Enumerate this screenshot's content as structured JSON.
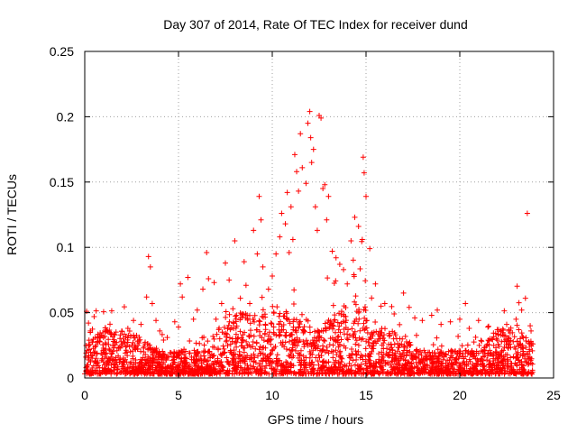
{
  "chart_data": {
    "type": "scatter",
    "title": "Day 307 of 2014, Rate Of TEC Index for receiver dund",
    "xlabel": "GPS time / hours",
    "ylabel": "ROTI / TECUs",
    "xlim": [
      0,
      25
    ],
    "ylim": [
      0,
      0.25
    ],
    "xticks": [
      0,
      5,
      10,
      15,
      20,
      25
    ],
    "xtick_labels": [
      "0",
      "5",
      "10",
      "15",
      "20",
      "25"
    ],
    "yticks": [
      0,
      0.05,
      0.1,
      0.15,
      0.2,
      0.25
    ],
    "ytick_labels": [
      "0",
      "0.05",
      "0.1",
      "0.15",
      "0.2",
      "0.25"
    ],
    "grid": true,
    "marker": "+",
    "color": "#ff0000",
    "series": [
      {
        "name": "ROTI",
        "x": [
          0.1,
          0.2,
          0.3,
          0.5,
          0.8,
          1.0,
          1.3,
          1.6,
          2.0,
          2.3,
          2.6,
          3.0,
          3.3,
          3.4,
          3.5,
          3.6,
          3.8,
          4.0,
          4.2,
          4.4,
          4.8,
          5.0,
          5.1,
          5.2,
          5.5,
          5.8,
          6.0,
          6.3,
          6.5,
          6.6,
          6.9,
          7.0,
          7.3,
          7.5,
          7.7,
          7.9,
          8.0,
          8.3,
          8.5,
          8.6,
          8.8,
          9.0,
          9.2,
          9.3,
          9.4,
          9.5,
          9.8,
          10.0,
          10.2,
          10.4,
          10.5,
          10.7,
          10.8,
          10.9,
          11.0,
          11.1,
          11.2,
          11.3,
          11.4,
          11.5,
          11.6,
          11.8,
          11.9,
          12.0,
          12.05,
          12.1,
          12.2,
          12.3,
          12.4,
          12.5,
          12.6,
          12.7,
          12.8,
          12.9,
          13.0,
          13.2,
          13.4,
          13.6,
          13.8,
          14.0,
          14.2,
          14.4,
          14.6,
          14.8,
          14.85,
          14.9,
          15.0,
          15.2,
          15.5,
          15.8,
          16.0,
          16.5,
          17.0,
          17.3,
          17.6,
          18.0,
          18.5,
          18.8,
          19.0,
          19.5,
          20.0,
          20.3,
          20.5,
          21.0,
          21.5,
          22.0,
          22.5,
          23.0,
          23.3,
          23.5,
          23.6,
          23.8
        ],
        "y": [
          0.051,
          0.042,
          0.036,
          0.047,
          0.028,
          0.031,
          0.022,
          0.033,
          0.026,
          0.038,
          0.044,
          0.041,
          0.062,
          0.093,
          0.085,
          0.057,
          0.044,
          0.036,
          0.029,
          0.031,
          0.043,
          0.039,
          0.072,
          0.062,
          0.077,
          0.045,
          0.052,
          0.068,
          0.096,
          0.076,
          0.073,
          0.045,
          0.057,
          0.088,
          0.075,
          0.053,
          0.105,
          0.061,
          0.089,
          0.071,
          0.057,
          0.113,
          0.095,
          0.139,
          0.121,
          0.085,
          0.068,
          0.078,
          0.095,
          0.108,
          0.126,
          0.118,
          0.142,
          0.096,
          0.131,
          0.106,
          0.171,
          0.158,
          0.143,
          0.187,
          0.161,
          0.149,
          0.195,
          0.204,
          0.184,
          0.165,
          0.175,
          0.131,
          0.113,
          0.201,
          0.199,
          0.145,
          0.148,
          0.121,
          0.139,
          0.097,
          0.092,
          0.087,
          0.083,
          0.072,
          0.105,
          0.123,
          0.116,
          0.106,
          0.169,
          0.157,
          0.139,
          0.099,
          0.072,
          0.055,
          0.057,
          0.049,
          0.065,
          0.054,
          0.046,
          0.044,
          0.048,
          0.052,
          0.041,
          0.043,
          0.045,
          0.057,
          0.038,
          0.044,
          0.039,
          0.037,
          0.041,
          0.045,
          0.052,
          0.061,
          0.126,
          0.036
        ]
      }
    ]
  }
}
